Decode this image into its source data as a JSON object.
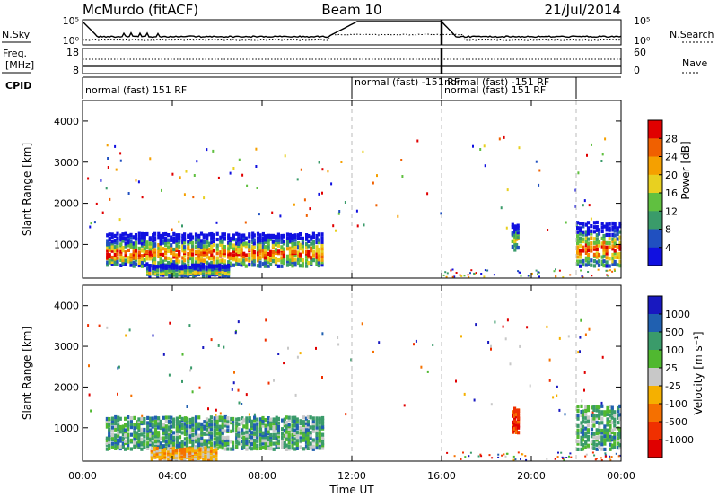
{
  "header": {
    "station": "McMurdo (fitACF)",
    "beam": "Beam 10",
    "date": "21/Jul/2014"
  },
  "noise_panel": {
    "left_label": "N.Sky",
    "right_label": "N.Search",
    "left_ticks": [
      "10^5",
      "10^0"
    ],
    "right_ticks": [
      "10^5",
      "10^0"
    ]
  },
  "freq_panel": {
    "left_label_1": "Freq.",
    "left_label_2": "[MHz]",
    "right_label": "Nave",
    "left_ticks": [
      "18",
      "8"
    ],
    "right_ticks": [
      "60",
      "0"
    ]
  },
  "cpid_panel": {
    "label": "CPID",
    "entries": [
      {
        "start": 0.0,
        "end": 12.0,
        "text": "normal (fast) 151 RF",
        "row": 0
      },
      {
        "start": 12.0,
        "end": 16.0,
        "text": "normal (fast) -151 RF",
        "row": -1
      },
      {
        "start": 16.0,
        "end": 22.0,
        "text": "normal (fast) -151 RF",
        "row": -1
      },
      {
        "start": 16.0,
        "end": 22.0,
        "text": "normal (fast) 151 RF",
        "row": 0
      }
    ]
  },
  "x_axis": {
    "label": "Time UT",
    "ticks": [
      "00:00",
      "04:00",
      "08:00",
      "12:00",
      "16:00",
      "20:00",
      "00:00"
    ]
  },
  "colors": {
    "power_scale": [
      "#1010e0",
      "#2050c0",
      "#3a9b6a",
      "#60c040",
      "#e8d020",
      "#f5a000",
      "#f06000",
      "#e00000"
    ],
    "velocity_scale": [
      "#e00000",
      "#f03000",
      "#f57000",
      "#f5b000",
      "#c8c8c8",
      "#50b830",
      "#3a9b6a",
      "#2060b0",
      "#1818c0"
    ]
  },
  "chart_data": [
    {
      "type": "heatmap",
      "name": "power",
      "ylabel": "Slant Range [km]",
      "xlabel": "",
      "xlim": [
        0,
        24
      ],
      "ylim": [
        180,
        4500
      ],
      "yticks": [
        "1000",
        "2000",
        "3000",
        "4000"
      ],
      "colorbar_label": "Power [dB]",
      "colorbar_ticks": [
        "4",
        "8",
        "12",
        "16",
        "20",
        "24",
        "28"
      ],
      "colorbar_range": [
        0,
        32
      ],
      "patches": [
        {
          "x": [
            1.0,
            10.7
          ],
          "range": [
            500,
            1300
          ],
          "peak": 28
        },
        {
          "x": [
            2.8,
            6.5
          ],
          "range": [
            250,
            500
          ],
          "peak": 20
        },
        {
          "x": [
            19.1,
            19.4
          ],
          "range": [
            900,
            1500
          ],
          "peak": 20
        },
        {
          "x": [
            22.0,
            24.0
          ],
          "range": [
            500,
            1600
          ],
          "peak": 28
        }
      ]
    },
    {
      "type": "heatmap",
      "name": "velocity",
      "ylabel": "Slant Range [km]",
      "xlabel": "",
      "xlim": [
        0,
        24
      ],
      "ylim": [
        180,
        4500
      ],
      "yticks": [
        "1000",
        "2000",
        "3000",
        "4000"
      ],
      "colorbar_label": "Velocity [m s^-1]",
      "colorbar_ticks": [
        "1000",
        "500",
        "100",
        "25",
        "-25",
        "-100",
        "-500",
        "-1000"
      ],
      "patches": [
        {
          "x": [
            1.0,
            10.7
          ],
          "range": [
            500,
            1300
          ],
          "value": 100
        },
        {
          "x": [
            3.0,
            6.0
          ],
          "range": [
            250,
            500
          ],
          "value": -100
        },
        {
          "x": [
            19.1,
            19.4
          ],
          "range": [
            900,
            1500
          ],
          "value": -500
        },
        {
          "x": [
            22.0,
            24.0
          ],
          "range": [
            500,
            1600
          ],
          "value": 100
        }
      ]
    }
  ]
}
